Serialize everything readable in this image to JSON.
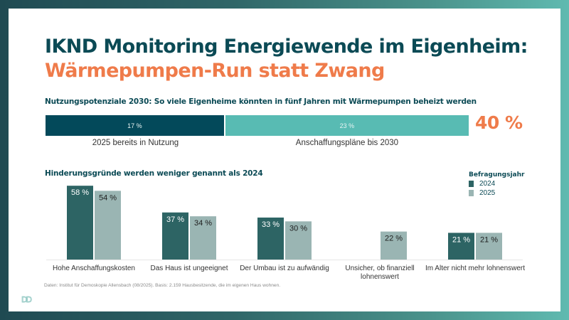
{
  "title": {
    "line1": "IKND Monitoring Energiewende im Eigenheim:",
    "line2": "Wärmepumpen-Run statt Zwang"
  },
  "colors": {
    "title_dark": "#0b4a55",
    "accent_orange": "#ef7b4a",
    "series_2024": "#2d6464",
    "series_2025": "#9ab5b3",
    "stack_in_use": "#03495a",
    "stack_planned": "#58bbb3"
  },
  "potential": {
    "heading": "Nutzungspotenziale 2030: So viele Eigenheime könnten in fünf Jahren mit Wärmepumpen beheizt werden",
    "total_label": "40 %",
    "segments": [
      {
        "label": "2025 bereits in Nutzung",
        "value": 17,
        "value_label": "17 %"
      },
      {
        "label": "Anschaffungspläne bis 2030",
        "value": 23,
        "value_label": "23 %"
      }
    ]
  },
  "chart_data": [
    {
      "type": "bar",
      "orientation": "horizontal-stacked",
      "title": "Nutzungspotenziale 2030: So viele Eigenheime könnten in fünf Jahren mit Wärmepumpen beheizt werden",
      "categories": [
        "2025 bereits in Nutzung",
        "Anschaffungspläne bis 2030"
      ],
      "values": [
        17,
        23
      ],
      "unit": "%",
      "total": 40
    },
    {
      "type": "bar",
      "title": "Hinderungsgründe werden weniger genannt als 2024",
      "categories": [
        "Hohe Anschaffungskosten",
        "Das Haus ist ungeeignet",
        "Der Umbau ist zu aufwändig",
        "Unsicher, ob finanziell lohnenswert",
        "Im Alter nicht mehr lohnenswert"
      ],
      "category_lines": [
        [
          "Hohe Anschaffungskosten"
        ],
        [
          "Das Haus ist ungeeignet"
        ],
        [
          "Der Umbau ist zu aufwändig"
        ],
        [
          "Unsicher, ob finanziell",
          "lohnenswert"
        ],
        [
          "Im Alter nicht mehr lohnenswert"
        ]
      ],
      "series": [
        {
          "name": "2024",
          "values": [
            58,
            37,
            33,
            null,
            21
          ]
        },
        {
          "name": "2025",
          "values": [
            54,
            34,
            30,
            22,
            21
          ]
        }
      ],
      "unit": "%",
      "legend_title": "Befragungsjahr",
      "legend_position": "top-right",
      "ylim": [
        0,
        60
      ],
      "grid": false,
      "xlabel": "",
      "ylabel": ""
    }
  ],
  "obstacles": {
    "heading": "Hinderungsgründe werden weniger genannt als 2024",
    "legend_title": "Befragungsjahr",
    "legend": [
      "2024",
      "2025"
    ]
  },
  "footnote": "Daten: Institut für Demoskopie Allensbach (08/2025). Basis: 2.159 Hausbesitzende, die im eigenen Haus wohnen.",
  "logo_text": "DD"
}
